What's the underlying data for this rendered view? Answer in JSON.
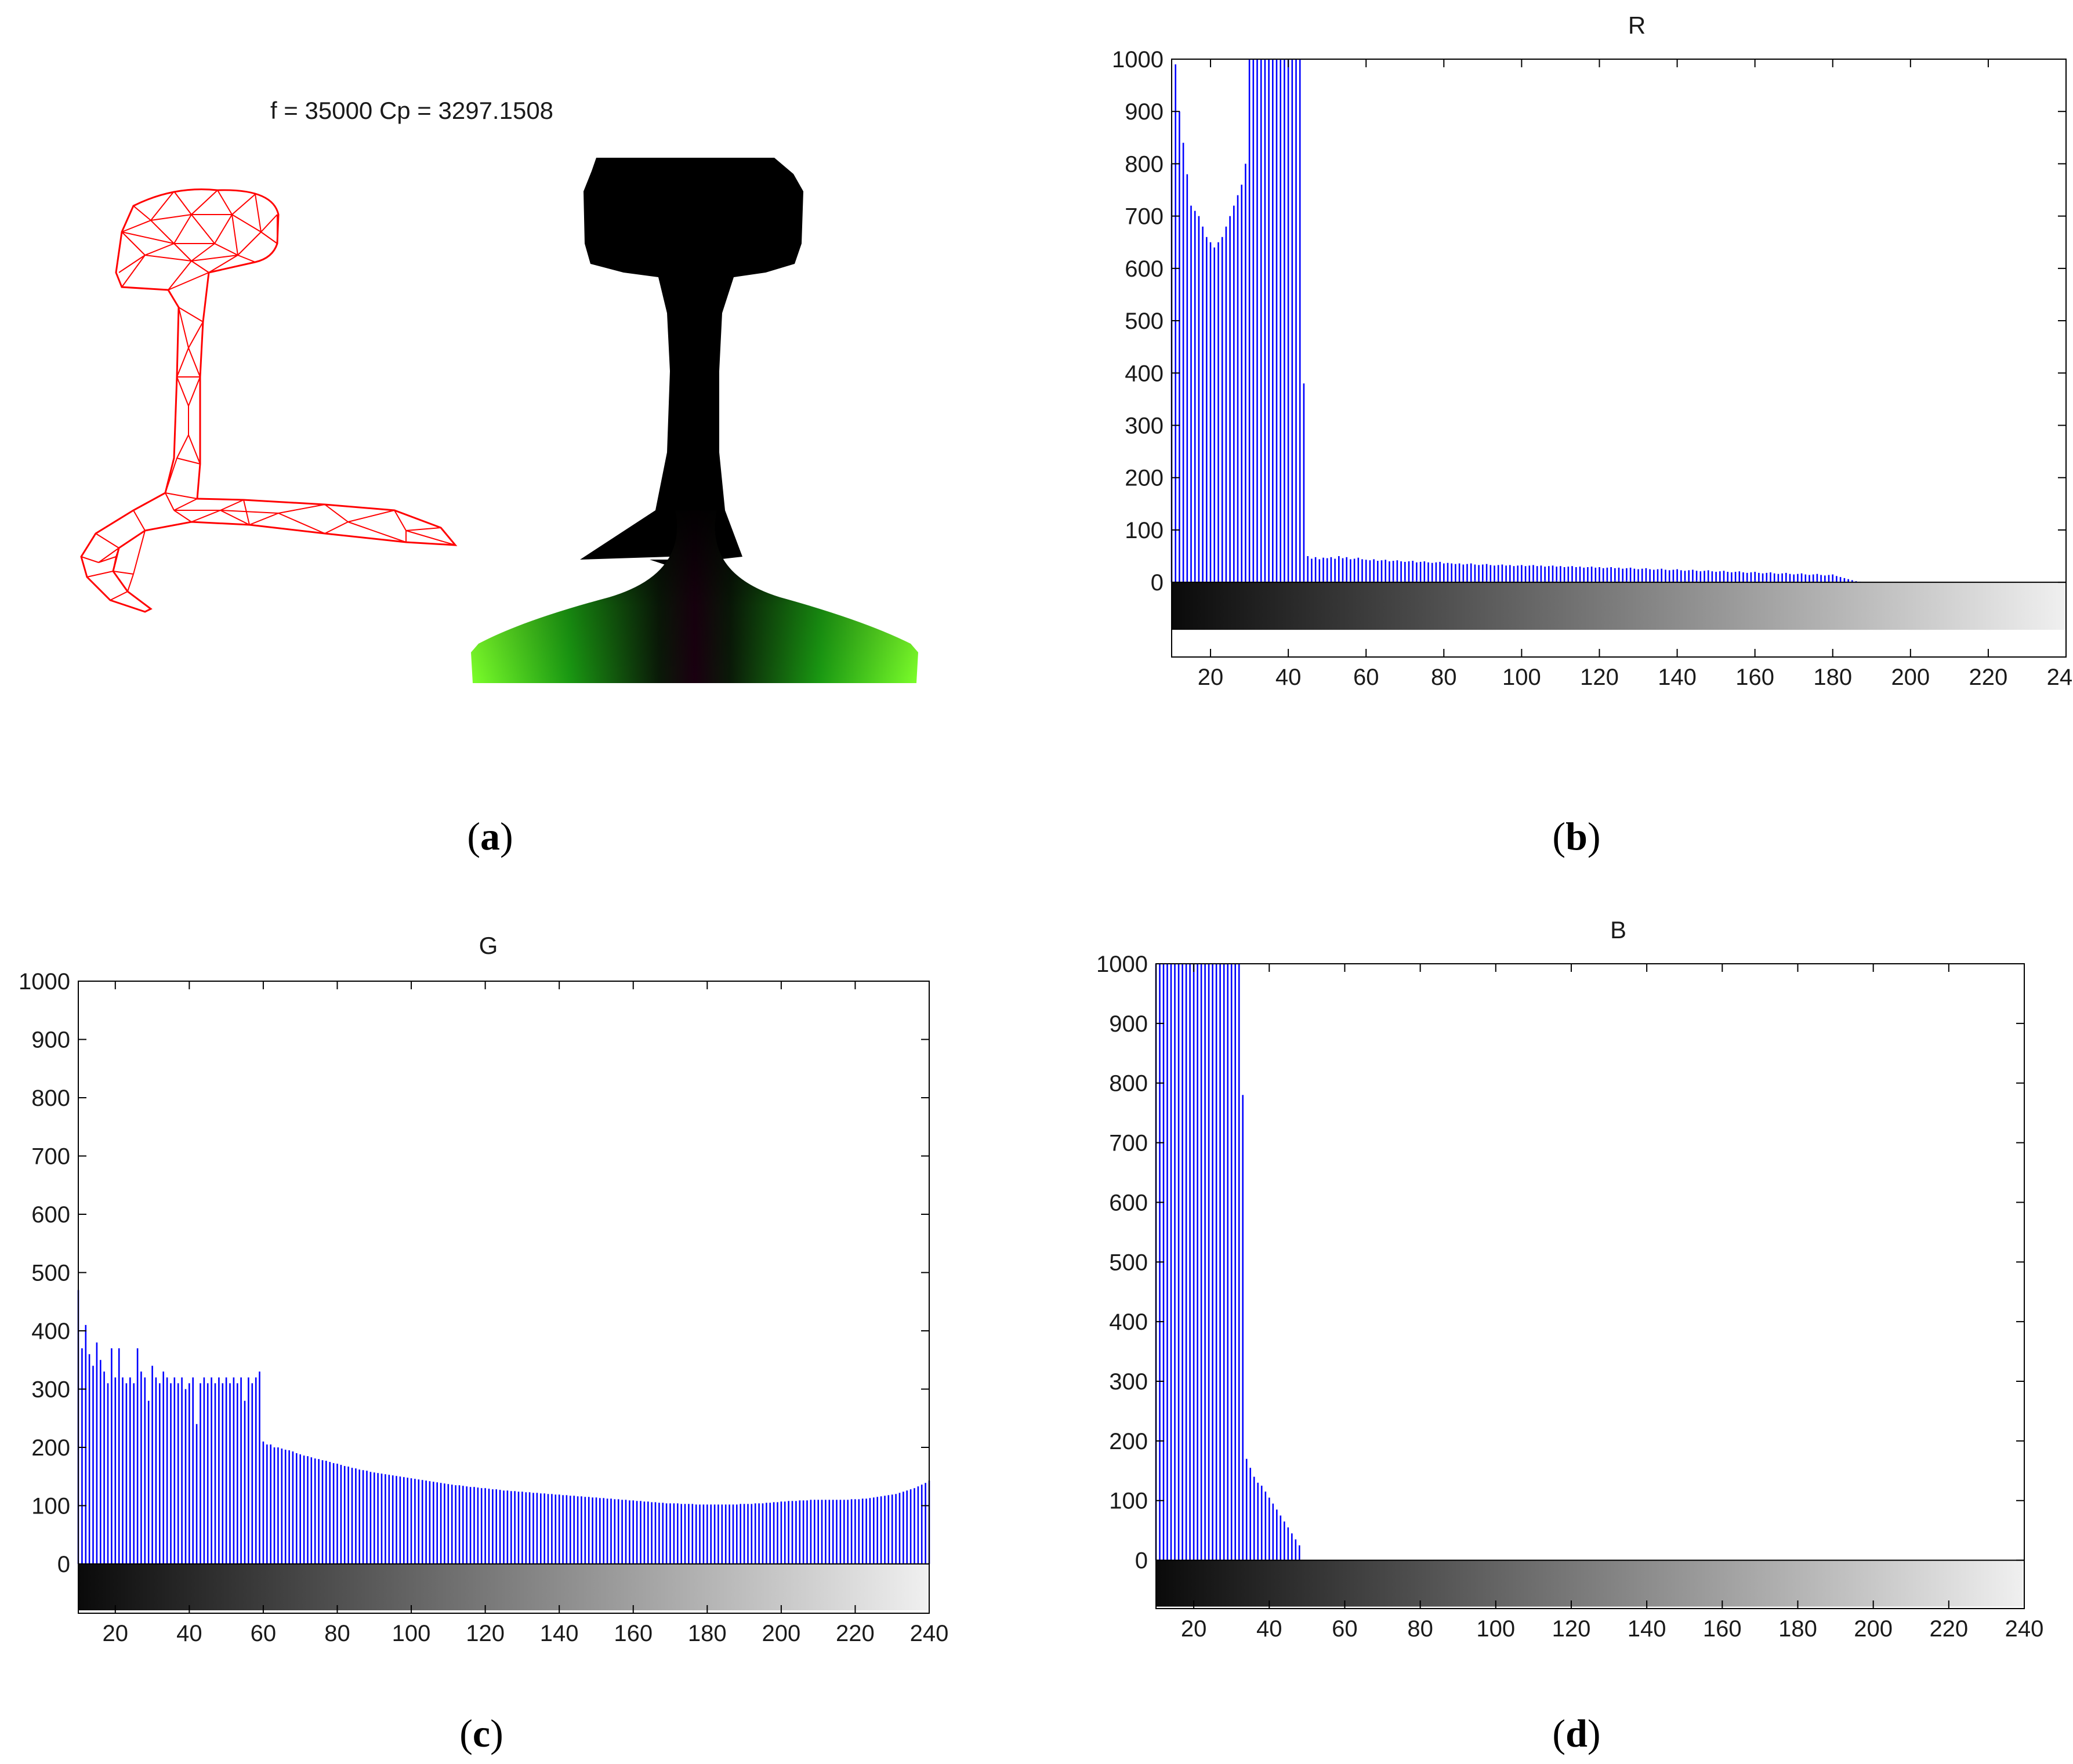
{
  "panel_a": {
    "title": "f = 35000 Cp = 3297.1508",
    "mesh_color": "#ff0000",
    "caption_letter": "a"
  },
  "chart_data": [
    {
      "id": "b",
      "type": "bar",
      "title": "R",
      "caption_letter": "b",
      "bar_color": "#0000ff",
      "x_start": 10,
      "x_step": 1,
      "xlim": [
        10,
        240
      ],
      "ylim": [
        0,
        1000
      ],
      "xticks": [
        "20",
        "40",
        "60",
        "80",
        "100",
        "120",
        "140",
        "160",
        "180",
        "200",
        "220",
        "240"
      ],
      "yticks": [
        "0",
        "100",
        "200",
        "300",
        "400",
        "500",
        "600",
        "700",
        "800",
        "900",
        "1000"
      ],
      "colorbar": "grayscale",
      "grid": false,
      "values": [
        800,
        990,
        900,
        840,
        780,
        720,
        710,
        700,
        680,
        660,
        650,
        640,
        650,
        660,
        680,
        700,
        720,
        740,
        760,
        800,
        1000,
        1000,
        1000,
        1000,
        1000,
        1000,
        1000,
        1000,
        1000,
        1000,
        1000,
        1000,
        1000,
        1000,
        380,
        50,
        45,
        48,
        44,
        47,
        46,
        48,
        45,
        50,
        46,
        48,
        44,
        45,
        47,
        44,
        43,
        42,
        44,
        41,
        42,
        43,
        40,
        41,
        42,
        40,
        39,
        40,
        41,
        38,
        39,
        40,
        38,
        37,
        38,
        39,
        36,
        37,
        36,
        35,
        36,
        34,
        35,
        36,
        34,
        33,
        34,
        35,
        33,
        32,
        33,
        34,
        32,
        33,
        31,
        32,
        33,
        31,
        32,
        33,
        31,
        32,
        30,
        31,
        32,
        30,
        31,
        29,
        30,
        31,
        29,
        30,
        28,
        29,
        30,
        28,
        29,
        27,
        28,
        29,
        27,
        28,
        26,
        27,
        28,
        26,
        25,
        26,
        27,
        25,
        24,
        25,
        26,
        24,
        23,
        24,
        25,
        23,
        22,
        23,
        24,
        22,
        21,
        22,
        23,
        21,
        20,
        21,
        22,
        20,
        19,
        20,
        21,
        19,
        18,
        19,
        20,
        18,
        17,
        18,
        19,
        17,
        16,
        17,
        18,
        16,
        15,
        16,
        17,
        15,
        14,
        15,
        16,
        14,
        13,
        14,
        15,
        12,
        10,
        8,
        6,
        4,
        2,
        1,
        0,
        0,
        0,
        0,
        0,
        0,
        0,
        0,
        0,
        0,
        0,
        0,
        0,
        0,
        0,
        0,
        0,
        0,
        0,
        0,
        0,
        0,
        0,
        0,
        0,
        0,
        0,
        0,
        0,
        0,
        0,
        0,
        0,
        0,
        0,
        0,
        0,
        0,
        0,
        0,
        0,
        0,
        0,
        0,
        0,
        0,
        0,
        0,
        0,
        0,
        0,
        0,
        0,
        0,
        0,
        0,
        0,
        0,
        0,
        0,
        0,
        0,
        0,
        0,
        0,
        0,
        0,
        0,
        0,
        0,
        0,
        0
      ]
    },
    {
      "id": "c",
      "type": "bar",
      "title": "G",
      "caption_letter": "c",
      "bar_color": "#0000ff",
      "x_start": 10,
      "x_step": 1,
      "xlim": [
        10,
        240
      ],
      "ylim": [
        0,
        1000
      ],
      "xticks": [
        "20",
        "40",
        "60",
        "80",
        "100",
        "120",
        "140",
        "160",
        "180",
        "200",
        "220",
        "240"
      ],
      "yticks": [
        "0",
        "100",
        "200",
        "300",
        "400",
        "500",
        "600",
        "700",
        "800",
        "900",
        "1000"
      ],
      "colorbar": "grayscale",
      "grid": false,
      "values": [
        470,
        370,
        410,
        360,
        340,
        380,
        350,
        330,
        310,
        370,
        320,
        370,
        320,
        310,
        320,
        310,
        370,
        330,
        320,
        280,
        340,
        320,
        310,
        330,
        320,
        310,
        320,
        310,
        320,
        300,
        310,
        320,
        240,
        310,
        320,
        310,
        320,
        310,
        320,
        310,
        320,
        310,
        320,
        310,
        320,
        280,
        320,
        310,
        320,
        330,
        210,
        205,
        205,
        200,
        200,
        198,
        196,
        195,
        193,
        190,
        188,
        186,
        185,
        183,
        181,
        180,
        178,
        177,
        175,
        173,
        172,
        170,
        168,
        167,
        165,
        164,
        162,
        161,
        160,
        158,
        157,
        156,
        155,
        154,
        153,
        152,
        151,
        150,
        149,
        148,
        147,
        146,
        145,
        144,
        143,
        142,
        141,
        140,
        139,
        138,
        137,
        136,
        135,
        135,
        134,
        133,
        132,
        132,
        131,
        130,
        130,
        129,
        128,
        128,
        127,
        126,
        126,
        125,
        125,
        124,
        124,
        123,
        123,
        122,
        122,
        121,
        121,
        120,
        120,
        119,
        119,
        118,
        118,
        117,
        117,
        116,
        116,
        115,
        115,
        114,
        114,
        113,
        113,
        112,
        112,
        111,
        111,
        110,
        110,
        109,
        109,
        108,
        108,
        107,
        107,
        106,
        106,
        105,
        105,
        104,
        104,
        104,
        104,
        103,
        103,
        103,
        103,
        102,
        102,
        102,
        102,
        102,
        102,
        102,
        102,
        102,
        102,
        102,
        102,
        103,
        103,
        103,
        103,
        104,
        104,
        104,
        105,
        105,
        106,
        106,
        107,
        107,
        108,
        108,
        108,
        109,
        109,
        109,
        110,
        110,
        110,
        110,
        110,
        110,
        110,
        110,
        110,
        110,
        110,
        111,
        111,
        111,
        112,
        112,
        113,
        114,
        115,
        116,
        117,
        118,
        119,
        120,
        122,
        124,
        126,
        128,
        130,
        133,
        136,
        139,
        143,
        147,
        152,
        158,
        165,
        175,
        190
      ]
    },
    {
      "id": "d",
      "type": "bar",
      "title": "B",
      "caption_letter": "d",
      "bar_color": "#0000ff",
      "x_start": 10,
      "x_step": 1,
      "xlim": [
        10,
        240
      ],
      "ylim": [
        0,
        1000
      ],
      "xticks": [
        "20",
        "40",
        "60",
        "80",
        "100",
        "120",
        "140",
        "160",
        "180",
        "200",
        "220",
        "240"
      ],
      "yticks": [
        "0",
        "100",
        "200",
        "300",
        "400",
        "500",
        "600",
        "700",
        "800",
        "900",
        "1000"
      ],
      "colorbar": "grayscale",
      "grid": false,
      "values": [
        1000,
        1000,
        1000,
        1000,
        1000,
        1000,
        1000,
        1000,
        1000,
        1000,
        1000,
        1000,
        1000,
        1000,
        1000,
        1000,
        1000,
        1000,
        1000,
        1000,
        1000,
        1000,
        1000,
        780,
        170,
        155,
        140,
        130,
        125,
        115,
        105,
        95,
        85,
        75,
        65,
        55,
        45,
        35,
        25,
        0,
        0,
        0,
        0,
        0,
        0,
        0,
        0,
        0,
        0,
        0,
        0,
        0,
        0,
        0,
        0,
        0,
        0,
        0,
        0,
        0,
        0,
        0,
        0,
        0,
        0,
        0,
        0,
        0,
        0,
        0,
        0,
        0,
        0,
        0,
        0,
        0,
        0,
        0,
        0,
        0,
        0,
        0,
        0,
        0,
        0,
        0,
        0,
        0,
        0,
        0,
        0,
        0,
        0,
        0,
        0,
        0,
        0,
        0,
        0,
        0,
        0,
        0,
        0,
        0,
        0,
        0,
        0,
        0,
        0,
        0,
        0,
        0,
        0,
        0,
        0,
        0,
        0,
        0,
        0,
        0,
        0,
        0,
        0,
        0,
        0,
        0,
        0,
        0,
        0,
        0,
        0,
        0,
        0,
        0,
        0,
        0,
        0,
        0,
        0,
        0,
        0,
        0,
        0,
        0,
        0,
        0,
        0,
        0,
        0,
        0,
        0,
        0,
        0,
        0,
        0,
        0,
        0,
        0,
        0,
        0,
        0,
        0,
        0,
        0,
        0,
        0,
        0,
        0,
        0,
        0,
        0,
        0,
        0,
        0,
        0,
        0,
        0,
        0,
        0,
        0,
        0,
        0,
        0,
        0,
        0,
        0,
        0,
        0,
        0,
        0,
        0,
        0,
        0,
        0,
        0,
        0,
        0,
        0,
        0,
        0,
        0,
        0,
        0,
        0,
        0,
        0,
        0,
        0,
        0,
        0,
        0,
        0,
        0,
        0,
        0,
        0,
        0,
        0,
        0,
        0,
        0,
        0,
        0,
        0,
        0,
        0,
        0,
        0,
        0,
        0,
        0,
        0,
        0,
        0
      ]
    }
  ]
}
